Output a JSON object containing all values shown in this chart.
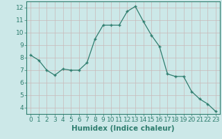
{
  "x": [
    0,
    1,
    2,
    3,
    4,
    5,
    6,
    7,
    8,
    9,
    10,
    11,
    12,
    13,
    14,
    15,
    16,
    17,
    18,
    19,
    20,
    21,
    22,
    23
  ],
  "y": [
    8.2,
    7.8,
    7.0,
    6.6,
    7.1,
    7.0,
    7.0,
    7.6,
    9.5,
    10.6,
    10.6,
    10.6,
    11.7,
    12.1,
    10.9,
    9.8,
    8.9,
    6.7,
    6.5,
    6.5,
    5.3,
    4.7,
    4.3,
    3.7
  ],
  "xlabel": "Humidex (Indice chaleur)",
  "xlim": [
    -0.5,
    23.5
  ],
  "ylim": [
    3.5,
    12.5
  ],
  "yticks": [
    4,
    5,
    6,
    7,
    8,
    9,
    10,
    11,
    12
  ],
  "xticks": [
    0,
    1,
    2,
    3,
    4,
    5,
    6,
    7,
    8,
    9,
    10,
    11,
    12,
    13,
    14,
    15,
    16,
    17,
    18,
    19,
    20,
    21,
    22,
    23
  ],
  "line_color": "#2e7d6e",
  "marker": "+",
  "marker_size": 3,
  "marker_lw": 1.0,
  "line_width": 0.9,
  "bg_color": "#cce8e8",
  "grid_color_major": "#c8b8b8",
  "tick_label_color": "#2e7d6e",
  "axis_label_color": "#2e7d6e",
  "font_size": 6.5,
  "xlabel_fontsize": 7.5
}
